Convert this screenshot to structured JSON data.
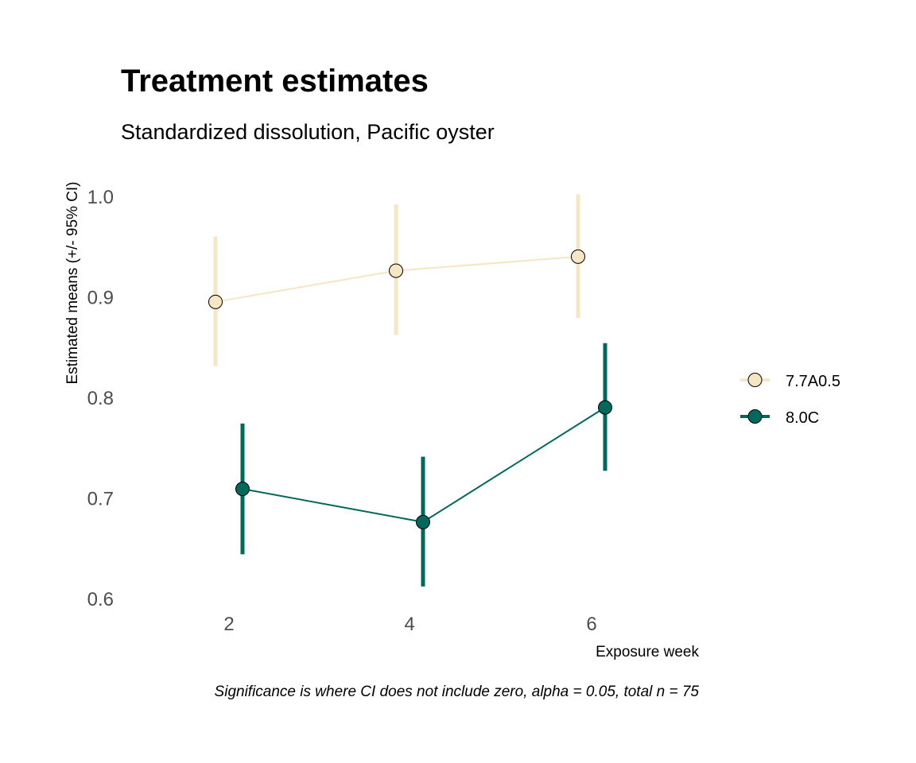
{
  "chart_data": {
    "type": "line",
    "title": "Treatment estimates",
    "subtitle": "Standardized dissolution, Pacific oyster",
    "xlabel": "Exposure week",
    "ylabel": "Estimated means (+/- 95% CI)",
    "caption": "Significance is where CI does not include zero, alpha = 0.05, total n = 75",
    "x_ticks": [
      "2",
      "4",
      "6"
    ],
    "y_ticks": [
      "0.6",
      "0.7",
      "0.8",
      "0.9",
      "1.0"
    ],
    "ylim": [
      0.6,
      1.0
    ],
    "xlim": [
      1,
      8
    ],
    "grid": false,
    "legend_position": "right",
    "series": [
      {
        "name": "7.7A0.5",
        "color": "#F5E6C4",
        "x": [
          2,
          4,
          6
        ],
        "values": [
          0.895,
          0.926,
          0.94
        ],
        "ci_low": [
          0.831,
          0.862,
          0.879
        ],
        "ci_high": [
          0.96,
          0.992,
          1.002
        ]
      },
      {
        "name": "8.0C",
        "color": "#00695C",
        "x": [
          2,
          4,
          6
        ],
        "values": [
          0.709,
          0.676,
          0.79
        ],
        "ci_low": [
          0.644,
          0.612,
          0.727
        ],
        "ci_high": [
          0.774,
          0.741,
          0.854
        ]
      }
    ]
  }
}
